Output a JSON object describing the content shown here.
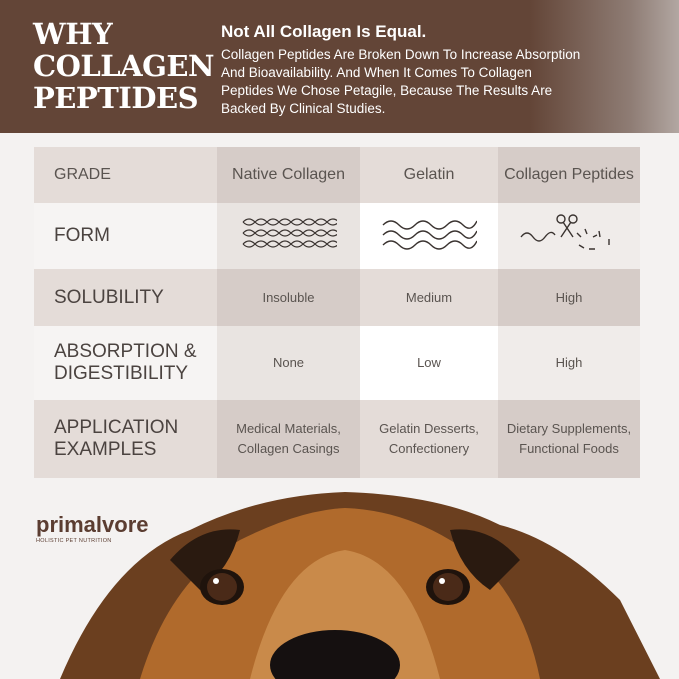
{
  "banner": {
    "title_lines": [
      "Why",
      "Collagen",
      "Peptides"
    ],
    "heading": "Not All Collagen Is Equal.",
    "body": "Collagen Peptides Are Broken Down To Increase Absorption And Bioavailability. And When It Comes To Collagen Peptides We Chose Petagile, Because The Results Are Backed By Clinical Studies."
  },
  "table": {
    "header": {
      "label": "GRADE",
      "cols": [
        "Native Collagen",
        "Gelatin",
        "Collagen Peptides"
      ]
    },
    "form": {
      "label": "FORM",
      "icons": [
        "triple-helix-icon",
        "wavy-strands-icon",
        "scissors-cut-fragments-icon"
      ]
    },
    "solubility": {
      "label": "SOLUBILITY",
      "values": [
        "Insoluble",
        "Medium",
        "High"
      ]
    },
    "absorption": {
      "label": "ABSORPTION & DIGESTIBILITY",
      "values": [
        "None",
        "Low",
        "High"
      ]
    },
    "application": {
      "label": "APPLICATION EXAMPLES",
      "values": [
        "Medical Materials, Collagen Casings",
        "Gelatin Desserts, Confectionery",
        "Dietary Supplements, Functional Foods"
      ]
    }
  },
  "logo": {
    "name": "primalvore",
    "tagline": "HOLISTIC PET NUTRITION"
  },
  "colors": {
    "banner": "#634537",
    "brand": "#5b3d31"
  }
}
